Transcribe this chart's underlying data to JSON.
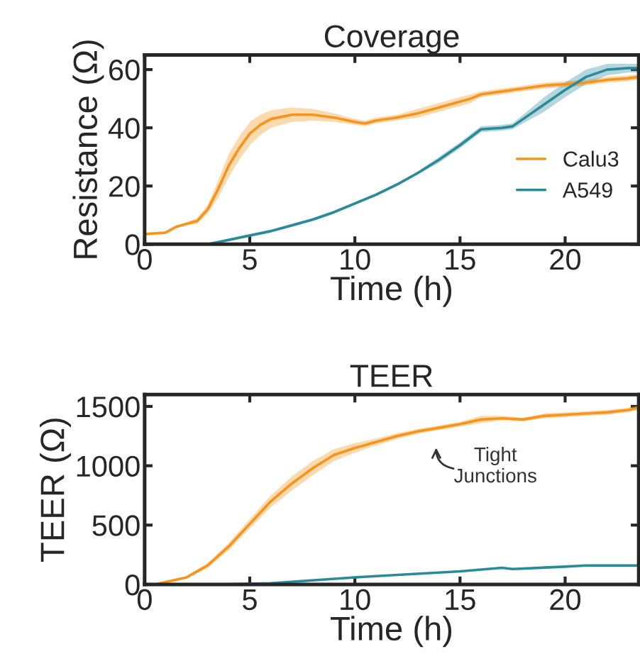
{
  "chart_data": [
    {
      "type": "line",
      "title": "Coverage",
      "xlabel": "Time (h)",
      "ylabel": "Resistance (Ω)",
      "xlim": [
        0,
        23.5
      ],
      "ylim": [
        0,
        65
      ],
      "xticks": [
        0,
        5,
        10,
        15,
        20
      ],
      "yticks": [
        0,
        20,
        40,
        60
      ],
      "grid": false,
      "legend": "bottom right",
      "series": [
        {
          "name": "Calu3",
          "color": "#f7941d",
          "x": [
            0,
            1,
            1.5,
            2,
            2.5,
            3,
            3.5,
            4,
            4.5,
            5,
            5.5,
            6,
            7,
            8,
            9,
            10,
            10.5,
            11,
            12,
            13,
            14,
            15,
            15.5,
            16,
            17,
            18,
            19,
            20,
            21,
            22,
            23,
            23.5
          ],
          "values": [
            3.5,
            4,
            6,
            7,
            8,
            12,
            19,
            27,
            33,
            38,
            41,
            43,
            44.5,
            44.5,
            43.5,
            42,
            41.5,
            42.5,
            43.5,
            45,
            47,
            49,
            50,
            51.5,
            52.5,
            53.5,
            54.5,
            55,
            55.5,
            56.5,
            57,
            57.5
          ],
          "lower": [
            3,
            3.5,
            5.5,
            6.5,
            7,
            10.5,
            16,
            23,
            29,
            34,
            37.5,
            40,
            42,
            42.5,
            42,
            41,
            40.5,
            41.5,
            42.5,
            43.5,
            45.5,
            47.5,
            48.5,
            50.5,
            51.5,
            52.5,
            53.5,
            54,
            54.5,
            55.5,
            56,
            56.5
          ],
          "upper": [
            4,
            4.5,
            6.5,
            7.5,
            9,
            13.5,
            22,
            31,
            37,
            42,
            44.5,
            46,
            47,
            46.5,
            45,
            43,
            42.5,
            43.5,
            44.5,
            46.5,
            48.5,
            50.5,
            51.5,
            52.5,
            53.5,
            54.5,
            55.5,
            56,
            56.5,
            57.5,
            58,
            58.5
          ]
        },
        {
          "name": "A549",
          "color": "#2a8a9a",
          "x": [
            0,
            3,
            4,
            5,
            6,
            7,
            8,
            9,
            10,
            11,
            12,
            13,
            14,
            15,
            16,
            17,
            17.5,
            18,
            19,
            20,
            21,
            22,
            23,
            23.5
          ],
          "values": [
            0,
            0,
            1.5,
            3,
            4.5,
            6.5,
            8.5,
            11,
            14,
            17,
            20.5,
            24.5,
            29,
            34,
            39.5,
            40,
            40.5,
            43,
            48,
            53,
            57.5,
            60,
            60.5,
            60.5
          ],
          "lower": [
            0,
            0,
            1,
            2.5,
            4,
            6,
            8,
            10.5,
            13.5,
            16.5,
            20,
            24,
            28,
            33,
            38.5,
            39,
            39.5,
            41.5,
            45.5,
            50.5,
            55,
            58,
            59,
            59
          ],
          "upper": [
            0,
            0,
            2,
            3.5,
            5,
            7,
            9,
            11.5,
            14.5,
            17.5,
            21,
            25,
            30,
            35,
            40.5,
            41,
            41.5,
            44.5,
            50.5,
            55.5,
            60,
            62,
            62,
            62
          ]
        }
      ]
    },
    {
      "type": "line",
      "title": "TEER",
      "xlabel": "Time (h)",
      "ylabel": "TEER (Ω)",
      "xlim": [
        0,
        23.5
      ],
      "ylim": [
        0,
        1600
      ],
      "xticks": [
        0,
        5,
        10,
        15,
        20
      ],
      "yticks": [
        0,
        500,
        1000,
        1500
      ],
      "grid": false,
      "annotations": [
        "Tight\nJunctions"
      ],
      "series": [
        {
          "color": "#f7941d",
          "x": [
            0.5,
            1,
            2,
            3,
            4,
            5,
            6,
            7,
            8,
            9,
            10,
            11,
            12,
            13,
            14,
            15,
            16,
            17,
            18,
            19,
            20,
            21,
            22,
            23,
            23.5
          ],
          "values": [
            0,
            20,
            60,
            160,
            320,
            510,
            700,
            850,
            980,
            1090,
            1150,
            1200,
            1250,
            1290,
            1320,
            1350,
            1390,
            1400,
            1390,
            1420,
            1430,
            1440,
            1450,
            1470,
            1490
          ],
          "lower": [
            0,
            15,
            50,
            140,
            290,
            470,
            650,
            790,
            920,
            1040,
            1110,
            1170,
            1225,
            1270,
            1300,
            1330,
            1360,
            1380,
            1375,
            1400,
            1410,
            1420,
            1430,
            1450,
            1470
          ],
          "upper": [
            0,
            25,
            70,
            180,
            350,
            550,
            750,
            910,
            1040,
            1140,
            1190,
            1230,
            1275,
            1310,
            1340,
            1370,
            1420,
            1420,
            1405,
            1440,
            1450,
            1460,
            1470,
            1490,
            1510
          ]
        },
        {
          "color": "#2a8a9a",
          "x": [
            3.5,
            6,
            10,
            15,
            17,
            17.5,
            20,
            21,
            23.5
          ],
          "values": [
            0,
            10,
            60,
            110,
            140,
            130,
            150,
            160,
            160
          ]
        }
      ]
    }
  ]
}
